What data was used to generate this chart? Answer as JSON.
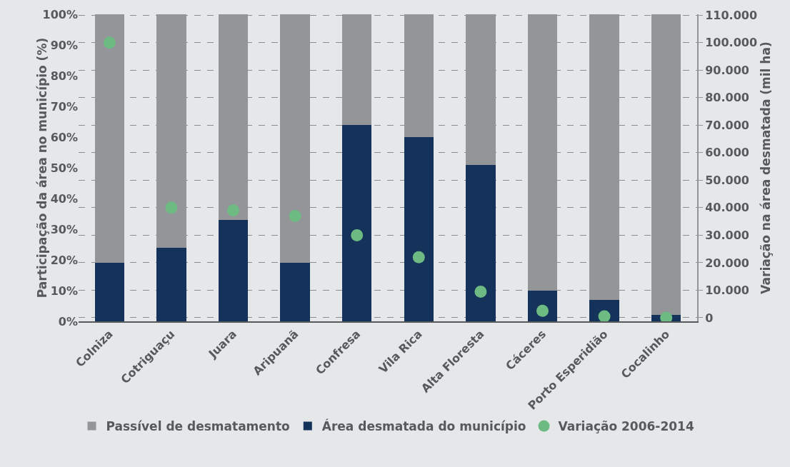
{
  "chart_data": {
    "type": "bar",
    "stacked": true,
    "ylabel": "Participação da área no município (%)",
    "y2label": "Variação na área desmatada (mil ha)",
    "categories": [
      "Colniza",
      "Cotriguaçu",
      "Juara",
      "Aripuanã",
      "Confresa",
      "Vila Rica",
      "Alta Floresta",
      "Cáceres",
      "Porto Esperidião",
      "Cocalinho"
    ],
    "series": [
      {
        "name": "Área desmatada do município",
        "color": "#14325a",
        "values": [
          19,
          24,
          33,
          19,
          64,
          60,
          51,
          10,
          7,
          2
        ]
      },
      {
        "name": "Passível de desmatamento",
        "color": "#939598",
        "values": [
          81,
          76,
          67,
          81,
          36,
          40,
          49,
          90,
          93,
          98
        ]
      },
      {
        "name": "Variação 2006-2014",
        "type": "scatter",
        "axis": "y2",
        "marker": "circle",
        "color": "#6dbb83",
        "values": [
          100000,
          40000,
          39000,
          37000,
          30000,
          22000,
          9500,
          2500,
          500,
          0
        ]
      }
    ],
    "ylim": [
      0,
      100
    ],
    "yticks": [
      {
        "value": 0,
        "label": "0%"
      },
      {
        "value": 10,
        "label": "10%"
      },
      {
        "value": 20,
        "label": "20%"
      },
      {
        "value": 30,
        "label": "30%"
      },
      {
        "value": 40,
        "label": "40%"
      },
      {
        "value": 50,
        "label": "50%"
      },
      {
        "value": 60,
        "label": "60%"
      },
      {
        "value": 70,
        "label": "70%"
      },
      {
        "value": 80,
        "label": "80%"
      },
      {
        "value": 90,
        "label": "90%"
      },
      {
        "value": 100,
        "label": "100%"
      }
    ],
    "y2lim": [
      -1300,
      110300
    ],
    "y2ticks": [
      0,
      {
        "value": 10000,
        "label": "10.000"
      },
      {
        "value": 20000,
        "label": "20.000"
      },
      {
        "value": 30000,
        "label": "30.000"
      },
      {
        "value": 40000,
        "label": "40.000"
      },
      {
        "value": 50000,
        "label": "50.000"
      },
      {
        "value": 60000,
        "label": "60.000"
      },
      {
        "value": 70000,
        "label": "70.000"
      },
      {
        "value": 80000,
        "label": "80.000"
      },
      {
        "value": 90000,
        "label": "90.000"
      },
      {
        "value": 100000,
        "label": "100.000"
      },
      {
        "value": 110000,
        "label": "110.000"
      }
    ],
    "grid": "y",
    "legend": "bottom"
  }
}
